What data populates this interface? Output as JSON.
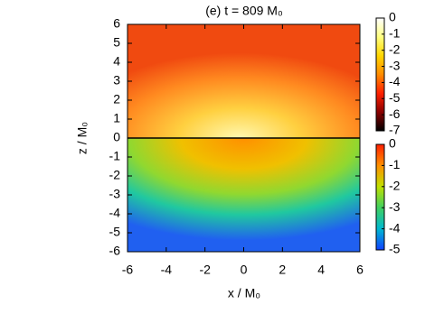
{
  "chart_data": {
    "type": "heatmap",
    "title": "(e) t = 809 M₀",
    "x_label": "x / M₀",
    "y_label": "z / M₀",
    "xlim": [
      -6,
      6
    ],
    "xticks": [
      -6,
      -4,
      -2,
      0,
      2,
      4,
      6
    ],
    "ylim": [
      -6,
      6
    ],
    "yticks": [
      -6,
      -5,
      -4,
      -3,
      -2,
      -1,
      0,
      1,
      2,
      3,
      4,
      5,
      6
    ],
    "colorbars": [
      {
        "lim": [
          -7,
          0
        ],
        "ticks": [
          0,
          -1,
          -2,
          -3,
          -4,
          -5,
          -6,
          -7
        ],
        "colors": [
          "#000000",
          "#8b0000",
          "#ff2000",
          "#ff8c00",
          "#ffd700",
          "#ffff80",
          "#ffffff"
        ]
      },
      {
        "lim": [
          -5,
          0
        ],
        "ticks": [
          0,
          -1,
          -2,
          -3,
          -4,
          -5
        ],
        "colors": [
          "#1040ff",
          "#00b8d0",
          "#40d060",
          "#c0e000",
          "#ff9000",
          "#ff2000"
        ]
      }
    ]
  }
}
